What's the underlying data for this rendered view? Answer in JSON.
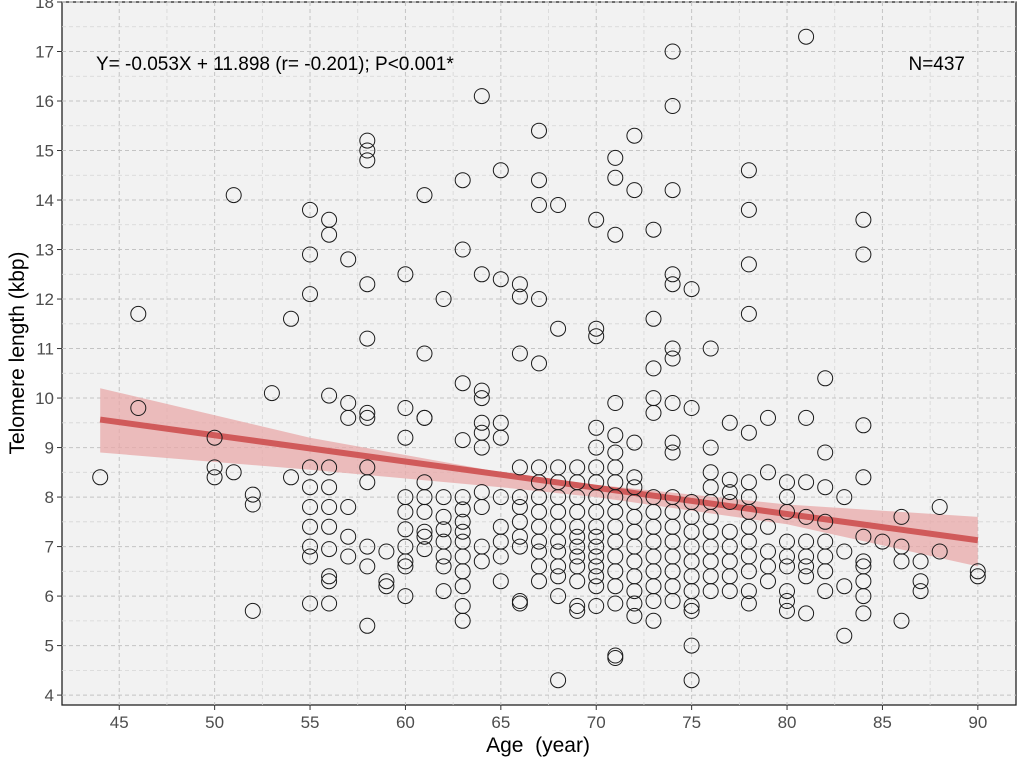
{
  "chart_data": {
    "type": "scatter",
    "title": "",
    "xlabel": "Age  (year)",
    "ylabel": "Telomere length (kbp)",
    "xlim": [
      42,
      92
    ],
    "ylim": [
      3.8,
      18
    ],
    "xticks": [
      45,
      50,
      55,
      60,
      65,
      70,
      75,
      80,
      85,
      90
    ],
    "yticks": [
      4,
      5,
      6,
      7,
      8,
      9,
      10,
      11,
      12,
      13,
      14,
      15,
      16,
      17,
      18
    ],
    "grid": true,
    "annotations": {
      "equation": "Y= -0.053X + 11.898 (r= -0.201); P<0.001*",
      "n": "N=437"
    },
    "regression": {
      "slope": -0.053,
      "intercept": 11.898,
      "ci_band": [
        {
          "x": 44,
          "lower": 8.9,
          "upper": 10.2
        },
        {
          "x": 55,
          "lower": 8.55,
          "upper": 9.2
        },
        {
          "x": 65,
          "lower": 8.2,
          "upper": 8.5
        },
        {
          "x": 70,
          "lower": 8.0,
          "upper": 8.25
        },
        {
          "x": 80,
          "lower": 7.45,
          "upper": 7.85
        },
        {
          "x": 90,
          "lower": 6.6,
          "upper": 7.6
        }
      ]
    },
    "points": [
      [
        44,
        8.4
      ],
      [
        46,
        11.7
      ],
      [
        46,
        9.8
      ],
      [
        50,
        9.2
      ],
      [
        50,
        8.6
      ],
      [
        50,
        8.4
      ],
      [
        51,
        14.1
      ],
      [
        51,
        8.5
      ],
      [
        52,
        8.05
      ],
      [
        52,
        7.85
      ],
      [
        52,
        5.7
      ],
      [
        53,
        10.1
      ],
      [
        54,
        11.6
      ],
      [
        54,
        8.4
      ],
      [
        55,
        13.8
      ],
      [
        55,
        12.9
      ],
      [
        55,
        12.1
      ],
      [
        55,
        8.6
      ],
      [
        55,
        8.2
      ],
      [
        55,
        7.8
      ],
      [
        55,
        7.4
      ],
      [
        55,
        7.0
      ],
      [
        55,
        6.8
      ],
      [
        55,
        5.85
      ],
      [
        56,
        13.6
      ],
      [
        56,
        13.3
      ],
      [
        56,
        10.05
      ],
      [
        56,
        8.6
      ],
      [
        56,
        8.2
      ],
      [
        56,
        7.8
      ],
      [
        56,
        7.4
      ],
      [
        56,
        6.95
      ],
      [
        56,
        6.4
      ],
      [
        56,
        6.3
      ],
      [
        56,
        5.85
      ],
      [
        57,
        12.8
      ],
      [
        57,
        9.9
      ],
      [
        57,
        9.6
      ],
      [
        57,
        7.8
      ],
      [
        57,
        7.2
      ],
      [
        57,
        6.8
      ],
      [
        58,
        15.2
      ],
      [
        58,
        15.0
      ],
      [
        58,
        14.8
      ],
      [
        58,
        12.3
      ],
      [
        58,
        11.2
      ],
      [
        58,
        9.7
      ],
      [
        58,
        9.6
      ],
      [
        58,
        8.6
      ],
      [
        58,
        8.3
      ],
      [
        58,
        7.0
      ],
      [
        58,
        6.6
      ],
      [
        58,
        5.4
      ],
      [
        59,
        6.9
      ],
      [
        59,
        6.3
      ],
      [
        59,
        6.2
      ],
      [
        60,
        12.5
      ],
      [
        60,
        9.8
      ],
      [
        60,
        9.2
      ],
      [
        60,
        8.0
      ],
      [
        60,
        7.7
      ],
      [
        60,
        7.35
      ],
      [
        60,
        7.0
      ],
      [
        60,
        6.7
      ],
      [
        60,
        6.6
      ],
      [
        60,
        6.0
      ],
      [
        61,
        14.1
      ],
      [
        61,
        10.9
      ],
      [
        61,
        9.6
      ],
      [
        61,
        9.6
      ],
      [
        61,
        8.3
      ],
      [
        61,
        8.0
      ],
      [
        61,
        7.7
      ],
      [
        61,
        7.3
      ],
      [
        61,
        7.2
      ],
      [
        61,
        6.95
      ],
      [
        62,
        12.0
      ],
      [
        62,
        8.0
      ],
      [
        62,
        7.6
      ],
      [
        62,
        7.35
      ],
      [
        62,
        7.1
      ],
      [
        62,
        6.8
      ],
      [
        62,
        6.6
      ],
      [
        62,
        6.1
      ],
      [
        63,
        14.4
      ],
      [
        63,
        13.0
      ],
      [
        63,
        10.3
      ],
      [
        63,
        9.15
      ],
      [
        63,
        8.0
      ],
      [
        63,
        7.75
      ],
      [
        63,
        7.5
      ],
      [
        63,
        7.3
      ],
      [
        63,
        7.1
      ],
      [
        63,
        6.8
      ],
      [
        63,
        6.5
      ],
      [
        63,
        6.2
      ],
      [
        63,
        5.8
      ],
      [
        63,
        5.5
      ],
      [
        64,
        16.1
      ],
      [
        64,
        12.5
      ],
      [
        64,
        10.15
      ],
      [
        64,
        10.0
      ],
      [
        64,
        9.5
      ],
      [
        64,
        9.3
      ],
      [
        64,
        9.0
      ],
      [
        64,
        8.1
      ],
      [
        64,
        7.8
      ],
      [
        64,
        7.0
      ],
      [
        64,
        6.7
      ],
      [
        65,
        14.6
      ],
      [
        65,
        12.4
      ],
      [
        65,
        9.5
      ],
      [
        65,
        9.2
      ],
      [
        65,
        8.0
      ],
      [
        65,
        7.4
      ],
      [
        65,
        7.1
      ],
      [
        65,
        6.8
      ],
      [
        65,
        6.3
      ],
      [
        66,
        12.3
      ],
      [
        66,
        12.05
      ],
      [
        66,
        10.9
      ],
      [
        66,
        8.6
      ],
      [
        66,
        8.0
      ],
      [
        66,
        7.8
      ],
      [
        66,
        7.5
      ],
      [
        66,
        7.2
      ],
      [
        66,
        7.0
      ],
      [
        66,
        5.9
      ],
      [
        66,
        5.85
      ],
      [
        67,
        15.4
      ],
      [
        67,
        14.4
      ],
      [
        67,
        13.9
      ],
      [
        67,
        12.0
      ],
      [
        67,
        10.7
      ],
      [
        67,
        8.6
      ],
      [
        67,
        8.3
      ],
      [
        67,
        8.0
      ],
      [
        67,
        7.7
      ],
      [
        67,
        7.4
      ],
      [
        67,
        7.1
      ],
      [
        67,
        6.9
      ],
      [
        67,
        6.6
      ],
      [
        67,
        6.3
      ],
      [
        68,
        13.9
      ],
      [
        68,
        11.4
      ],
      [
        68,
        8.6
      ],
      [
        68,
        8.3
      ],
      [
        68,
        8.0
      ],
      [
        68,
        7.7
      ],
      [
        68,
        7.4
      ],
      [
        68,
        7.1
      ],
      [
        68,
        6.9
      ],
      [
        68,
        6.6
      ],
      [
        68,
        6.4
      ],
      [
        68,
        6.0
      ],
      [
        68,
        4.3
      ],
      [
        69,
        8.6
      ],
      [
        69,
        8.3
      ],
      [
        69,
        8.0
      ],
      [
        69,
        7.7
      ],
      [
        69,
        7.4
      ],
      [
        69,
        7.2
      ],
      [
        69,
        7.0
      ],
      [
        69,
        6.8
      ],
      [
        69,
        6.6
      ],
      [
        69,
        6.3
      ],
      [
        69,
        5.8
      ],
      [
        69,
        5.7
      ],
      [
        70,
        13.6
      ],
      [
        70,
        11.4
      ],
      [
        70,
        11.25
      ],
      [
        70,
        9.4
      ],
      [
        70,
        9.0
      ],
      [
        70,
        8.6
      ],
      [
        70,
        8.3
      ],
      [
        70,
        8.0
      ],
      [
        70,
        7.7
      ],
      [
        70,
        7.4
      ],
      [
        70,
        7.2
      ],
      [
        70,
        7.0
      ],
      [
        70,
        6.8
      ],
      [
        70,
        6.6
      ],
      [
        70,
        6.4
      ],
      [
        70,
        6.2
      ],
      [
        70,
        5.8
      ],
      [
        71,
        14.85
      ],
      [
        71,
        14.45
      ],
      [
        71,
        13.3
      ],
      [
        71,
        9.9
      ],
      [
        71,
        9.25
      ],
      [
        71,
        8.9
      ],
      [
        71,
        8.6
      ],
      [
        71,
        8.3
      ],
      [
        71,
        8.0
      ],
      [
        71,
        7.7
      ],
      [
        71,
        7.4
      ],
      [
        71,
        7.1
      ],
      [
        71,
        6.8
      ],
      [
        71,
        6.5
      ],
      [
        71,
        6.2
      ],
      [
        71,
        5.85
      ],
      [
        71,
        4.8
      ],
      [
        71,
        4.75
      ],
      [
        72,
        15.3
      ],
      [
        72,
        14.2
      ],
      [
        72,
        9.1
      ],
      [
        72,
        8.4
      ],
      [
        72,
        8.2
      ],
      [
        72,
        7.9
      ],
      [
        72,
        7.6
      ],
      [
        72,
        7.3
      ],
      [
        72,
        7.0
      ],
      [
        72,
        6.7
      ],
      [
        72,
        6.4
      ],
      [
        72,
        6.1
      ],
      [
        72,
        5.85
      ],
      [
        72,
        5.6
      ],
      [
        73,
        13.4
      ],
      [
        73,
        11.6
      ],
      [
        73,
        10.6
      ],
      [
        73,
        10.0
      ],
      [
        73,
        9.7
      ],
      [
        73,
        8.0
      ],
      [
        73,
        7.7
      ],
      [
        73,
        7.4
      ],
      [
        73,
        7.1
      ],
      [
        73,
        6.8
      ],
      [
        73,
        6.5
      ],
      [
        73,
        6.2
      ],
      [
        73,
        5.9
      ],
      [
        73,
        5.5
      ],
      [
        74,
        17.0
      ],
      [
        74,
        15.9
      ],
      [
        74,
        14.2
      ],
      [
        74,
        12.5
      ],
      [
        74,
        12.3
      ],
      [
        74,
        11.0
      ],
      [
        74,
        10.8
      ],
      [
        74,
        9.9
      ],
      [
        74,
        9.1
      ],
      [
        74,
        8.9
      ],
      [
        74,
        8.0
      ],
      [
        74,
        7.7
      ],
      [
        74,
        7.4
      ],
      [
        74,
        7.1
      ],
      [
        74,
        6.8
      ],
      [
        74,
        6.5
      ],
      [
        74,
        6.2
      ],
      [
        74,
        5.9
      ],
      [
        75,
        12.2
      ],
      [
        75,
        9.8
      ],
      [
        75,
        7.9
      ],
      [
        75,
        7.6
      ],
      [
        75,
        7.3
      ],
      [
        75,
        7.0
      ],
      [
        75,
        6.7
      ],
      [
        75,
        6.4
      ],
      [
        75,
        6.1
      ],
      [
        75,
        5.8
      ],
      [
        75,
        5.7
      ],
      [
        75,
        5.0
      ],
      [
        75,
        4.3
      ],
      [
        76,
        11.0
      ],
      [
        76,
        9.0
      ],
      [
        76,
        8.5
      ],
      [
        76,
        8.2
      ],
      [
        76,
        7.9
      ],
      [
        76,
        7.6
      ],
      [
        76,
        7.3
      ],
      [
        76,
        7.0
      ],
      [
        76,
        6.7
      ],
      [
        76,
        6.4
      ],
      [
        76,
        6.1
      ],
      [
        77,
        9.5
      ],
      [
        77,
        8.35
      ],
      [
        77,
        8.1
      ],
      [
        77,
        7.9
      ],
      [
        77,
        7.3
      ],
      [
        77,
        7.0
      ],
      [
        77,
        6.7
      ],
      [
        77,
        6.4
      ],
      [
        77,
        6.1
      ],
      [
        78,
        14.6
      ],
      [
        78,
        13.8
      ],
      [
        78,
        12.7
      ],
      [
        78,
        11.7
      ],
      [
        78,
        9.3
      ],
      [
        78,
        8.3
      ],
      [
        78,
        8.0
      ],
      [
        78,
        7.7
      ],
      [
        78,
        7.4
      ],
      [
        78,
        7.1
      ],
      [
        78,
        6.8
      ],
      [
        78,
        6.5
      ],
      [
        78,
        6.1
      ],
      [
        78,
        5.85
      ],
      [
        79,
        9.6
      ],
      [
        79,
        8.5
      ],
      [
        79,
        7.4
      ],
      [
        79,
        6.9
      ],
      [
        79,
        6.6
      ],
      [
        79,
        6.3
      ],
      [
        80,
        8.3
      ],
      [
        80,
        8.0
      ],
      [
        80,
        7.7
      ],
      [
        80,
        7.1
      ],
      [
        80,
        6.8
      ],
      [
        80,
        6.6
      ],
      [
        80,
        6.1
      ],
      [
        80,
        5.9
      ],
      [
        80,
        5.7
      ],
      [
        81,
        9.6
      ],
      [
        81,
        8.3
      ],
      [
        81,
        7.6
      ],
      [
        81,
        7.1
      ],
      [
        81,
        6.8
      ],
      [
        81,
        6.6
      ],
      [
        81,
        6.4
      ],
      [
        81,
        5.65
      ],
      [
        81,
        17.3
      ],
      [
        82,
        10.4
      ],
      [
        82,
        8.9
      ],
      [
        82,
        8.2
      ],
      [
        82,
        7.5
      ],
      [
        82,
        7.1
      ],
      [
        82,
        6.8
      ],
      [
        82,
        6.5
      ],
      [
        82,
        6.1
      ],
      [
        83,
        8.0
      ],
      [
        83,
        6.9
      ],
      [
        83,
        6.2
      ],
      [
        83,
        5.2
      ],
      [
        84,
        13.6
      ],
      [
        84,
        12.9
      ],
      [
        84,
        9.45
      ],
      [
        84,
        8.4
      ],
      [
        84,
        7.2
      ],
      [
        84,
        6.7
      ],
      [
        84,
        6.6
      ],
      [
        84,
        6.3
      ],
      [
        84,
        6.0
      ],
      [
        84,
        5.65
      ],
      [
        85,
        7.1
      ],
      [
        86,
        7.6
      ],
      [
        86,
        7.0
      ],
      [
        86,
        6.7
      ],
      [
        86,
        5.5
      ],
      [
        87,
        6.7
      ],
      [
        87,
        6.3
      ],
      [
        87,
        6.1
      ],
      [
        88,
        7.8
      ],
      [
        88,
        6.9
      ],
      [
        90,
        6.5
      ],
      [
        90,
        6.4
      ]
    ]
  },
  "colors": {
    "panel_bg": "#f2f2f2",
    "regression_line": "#d05a5a",
    "ci_band": "#e8a8a8",
    "point_stroke": "#1a1a1a"
  }
}
